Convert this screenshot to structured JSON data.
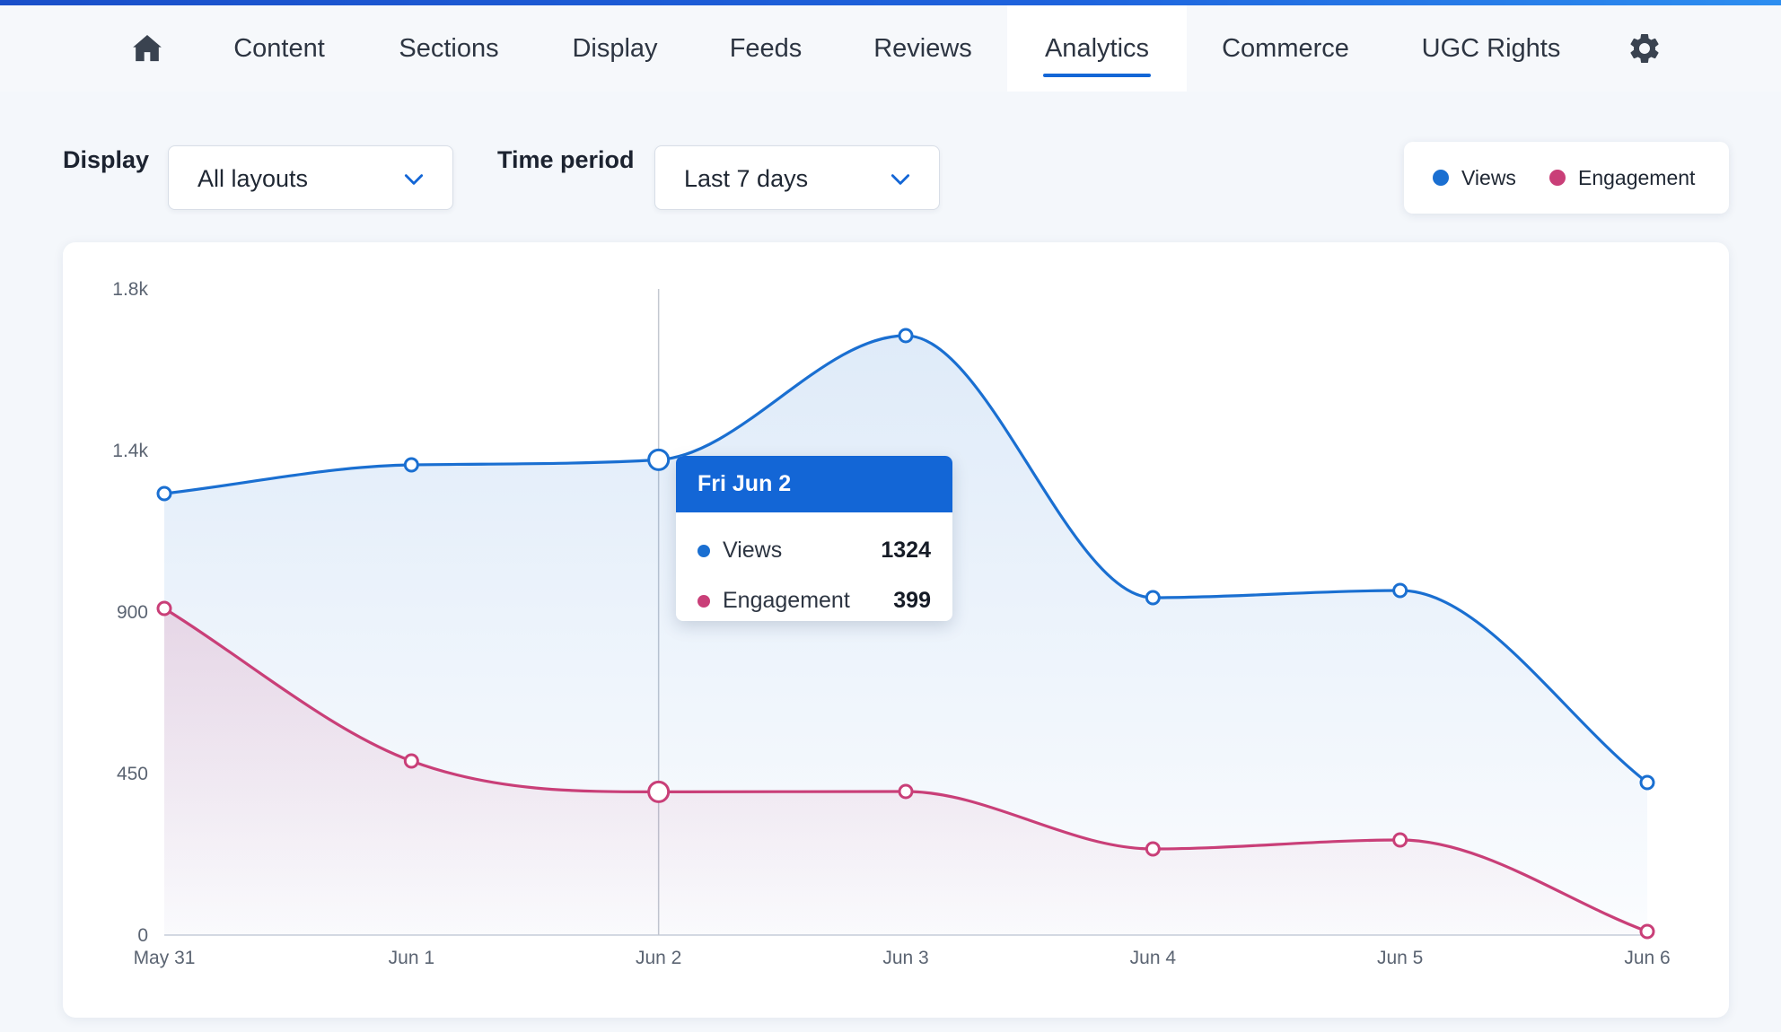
{
  "nav": {
    "home_icon": "home-icon",
    "settings_icon": "gear-icon",
    "items": [
      {
        "label": "Content"
      },
      {
        "label": "Sections"
      },
      {
        "label": "Display"
      },
      {
        "label": "Feeds"
      },
      {
        "label": "Reviews"
      },
      {
        "label": "Analytics",
        "active": true
      },
      {
        "label": "Commerce"
      },
      {
        "label": "UGC Rights"
      }
    ]
  },
  "filters": {
    "display_label": "Display",
    "display_value": "All layouts",
    "period_label": "Time period",
    "period_value": "Last 7 days"
  },
  "legend": {
    "views": "Views",
    "engagement": "Engagement"
  },
  "tooltip": {
    "title": "Fri Jun 2",
    "views_label": "Views",
    "views_value": "1324",
    "engagement_label": "Engagement",
    "engagement_value": "399"
  },
  "colors": {
    "accent": "#1366d6",
    "views": "#1a6fd1",
    "engagement": "#c93f78"
  },
  "chart_data": {
    "type": "line",
    "categories": [
      "May 31",
      "Jun 1",
      "Jun 2",
      "Jun 3",
      "Jun 4",
      "Jun 5",
      "Jun 6"
    ],
    "series": [
      {
        "name": "Views",
        "values": [
          1230,
          1310,
          1324,
          1670,
          940,
          960,
          425
        ]
      },
      {
        "name": "Engagement",
        "values": [
          910,
          485,
          399,
          400,
          240,
          265,
          10
        ]
      }
    ],
    "y_ticks": [
      "0",
      "450",
      "900",
      "1.4k",
      "1.8k"
    ],
    "y_tick_values": [
      0,
      450,
      900,
      1350,
      1800
    ],
    "ylim": [
      0,
      1800
    ],
    "highlight_index": 2,
    "grid": false,
    "legend_position": "top-right"
  }
}
